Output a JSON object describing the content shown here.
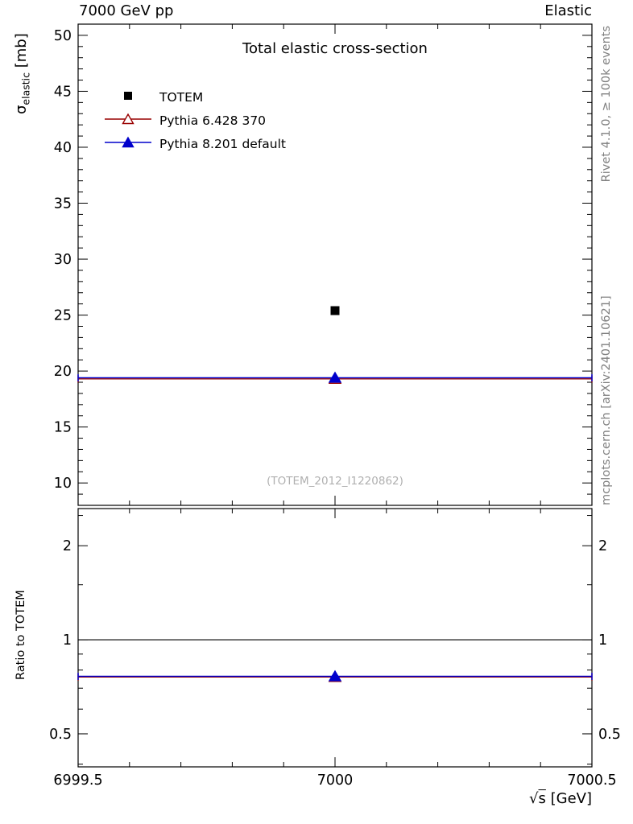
{
  "header": {
    "left": "7000 GeV pp",
    "right": "Elastic"
  },
  "title": "Total elastic cross-section",
  "watermark": "(TOTEM_2012_I1220862)",
  "side_notes": {
    "top": "Rivet 4.1.0, ≥ 100k events",
    "bottom": "mcplots.cern.ch [arXiv:2401.10621]"
  },
  "axes": {
    "y_main": {
      "label_symbol": "σ",
      "label_sub": "elastic",
      "label_unit": " [mb]",
      "min": 8.0,
      "max": 51.0,
      "major_ticks": [
        10,
        15,
        20,
        25,
        30,
        35,
        40,
        45,
        50
      ],
      "minor_step": 1
    },
    "y_ratio": {
      "label": "Ratio to TOTEM",
      "scale": "log",
      "min": 0.392,
      "max": 2.63,
      "major_ticks": [
        0.5,
        1,
        2
      ],
      "major_tick_labels": [
        "0.5",
        "1",
        "2"
      ],
      "minor_ticks": [
        0.4,
        0.6,
        0.7,
        0.8,
        0.9,
        1.5,
        2.5
      ]
    },
    "x": {
      "label_root": "√",
      "label_s": "s",
      "label_unit": " [GeV]",
      "min": 6999.5,
      "max": 7000.5,
      "major_ticks": [
        6999.5,
        7000,
        7000.5
      ],
      "major_tick_labels": [
        "6999.5",
        "7000",
        "7000.5"
      ],
      "minor_step": 0.1
    }
  },
  "chart_data": {
    "type": "scatter",
    "title": "Total elastic cross-section",
    "xlabel": "√s [GeV]",
    "ylabel": "σ_elastic [mb]",
    "ratio_ylabel": "Ratio to TOTEM",
    "xlim": [
      6999.5,
      7000.5
    ],
    "ylim_main": [
      8.0,
      51.0
    ],
    "ylim_ratio": [
      0.392,
      2.63
    ],
    "ratio_scale": "log",
    "legend_position": "top-left",
    "reference_ratio_line": 1.0,
    "series": [
      {
        "name": "TOTEM",
        "role": "data",
        "marker": "square-filled",
        "color": "#000000",
        "x": 7000,
        "y": 25.4
      },
      {
        "name": "Pythia 6.428 370",
        "role": "mc",
        "marker": "triangle-open",
        "color": "#990000",
        "x": 7000,
        "y": 19.3,
        "xspan": [
          6999.5,
          7000.5
        ],
        "ratio": 0.76
      },
      {
        "name": "Pythia 8.201 default",
        "role": "mc",
        "marker": "triangle-filled",
        "color": "#0000cc",
        "x": 7000,
        "y": 19.4,
        "xspan": [
          6999.5,
          7000.5
        ],
        "ratio": 0.764
      }
    ]
  }
}
